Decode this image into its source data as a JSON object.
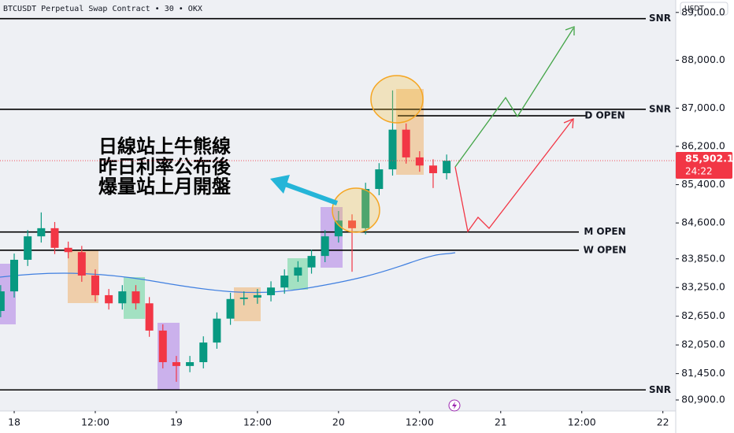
{
  "chart_data": {
    "type": "candlestick",
    "title": "BTCUSDT Perpetual Swap Contract • 30 • OKX",
    "currency": "USDT",
    "up_color": "#089981",
    "down_color": "#f23645",
    "x": [
      -2,
      0,
      2,
      4,
      6,
      8,
      10,
      12,
      14,
      16,
      18,
      20,
      22,
      24,
      26,
      28,
      30,
      32,
      34,
      36,
      38,
      40,
      42,
      44,
      46,
      48,
      50,
      52,
      54,
      56,
      58,
      60,
      62,
      64
    ],
    "open": [
      82760,
      83170,
      83830,
      84320,
      84490,
      84080,
      83990,
      83500,
      83090,
      82920,
      83170,
      82920,
      82350,
      81690,
      81610,
      81690,
      82100,
      82600,
      83010,
      83040,
      83090,
      83250,
      83500,
      83670,
      83910,
      84320,
      84650,
      84490,
      85310,
      85720,
      86550,
      85970,
      85800,
      85640
    ],
    "high": [
      83300,
      83960,
      84450,
      84820,
      84620,
      84210,
      84120,
      83630,
      83220,
      83300,
      83300,
      83050,
      82480,
      81820,
      81820,
      82230,
      82730,
      83140,
      83170,
      83220,
      83380,
      83630,
      83800,
      84040,
      84450,
      84850,
      84780,
      85440,
      85850,
      87370,
      86680,
      86100,
      85930,
      86030
    ],
    "low": [
      82630,
      83040,
      83700,
      84190,
      83950,
      83860,
      83370,
      82960,
      82790,
      82790,
      82790,
      82220,
      81560,
      81280,
      81480,
      81560,
      81970,
      82470,
      82880,
      82910,
      82960,
      83120,
      83370,
      83540,
      83780,
      84190,
      83580,
      84360,
      85180,
      85590,
      85840,
      85670,
      85330,
      85510
    ],
    "close": [
      83170,
      83830,
      84320,
      84490,
      84080,
      83990,
      83500,
      83090,
      82920,
      83170,
      82920,
      82350,
      81690,
      81610,
      81690,
      82100,
      82600,
      83010,
      83040,
      83090,
      83250,
      83500,
      83670,
      83910,
      84320,
      84650,
      84490,
      85310,
      85720,
      86550,
      85970,
      85800,
      85640,
      85900
    ],
    "xlim": [
      -2.1,
      97.9
    ],
    "xticks": [
      {
        "value": 0,
        "label": "18"
      },
      {
        "value": 12,
        "label": "12:00"
      },
      {
        "value": 24,
        "label": "19"
      },
      {
        "value": 36,
        "label": "12:00"
      },
      {
        "value": 48,
        "label": "20"
      },
      {
        "value": 60,
        "label": "12:00"
      },
      {
        "value": 72,
        "label": "21"
      },
      {
        "value": 84,
        "label": "12:00"
      },
      {
        "value": 96,
        "label": "22"
      }
    ],
    "ylim": [
      80670,
      89260
    ],
    "yticks": [
      {
        "value": 80900,
        "label": "80,900.0"
      },
      {
        "value": 81450,
        "label": "81,450.0"
      },
      {
        "value": 82050,
        "label": "82,050.0"
      },
      {
        "value": 82650,
        "label": "82,650.0"
      },
      {
        "value": 83250,
        "label": "83,250.0"
      },
      {
        "value": 83850,
        "label": "83,850.0"
      },
      {
        "value": 84600,
        "label": "84,600.0"
      },
      {
        "value": 85400,
        "label": "85,400.0"
      },
      {
        "value": 86200,
        "label": "86,200.0"
      },
      {
        "value": 87000,
        "label": "87,000.0"
      },
      {
        "value": 88000,
        "label": "88,000.0"
      },
      {
        "value": 89000,
        "label": "89,000.0"
      }
    ],
    "last_price": {
      "value": 85902.1,
      "label": "85,902.1"
    },
    "countdown": "24:22",
    "levels": [
      {
        "label": "SNR",
        "value": 88870
      },
      {
        "label": "SNR",
        "value": 86975
      },
      {
        "label": "D OPEN",
        "value": 86840
      },
      {
        "label": "M OPEN",
        "value": 84410
      },
      {
        "label": "W OPEN",
        "value": 84030
      },
      {
        "label": "SNR",
        "value": 81110
      }
    ],
    "annotation": [
      "日線站上牛熊線",
      "昨日利率公布後",
      "爆量站上月開盤"
    ]
  }
}
